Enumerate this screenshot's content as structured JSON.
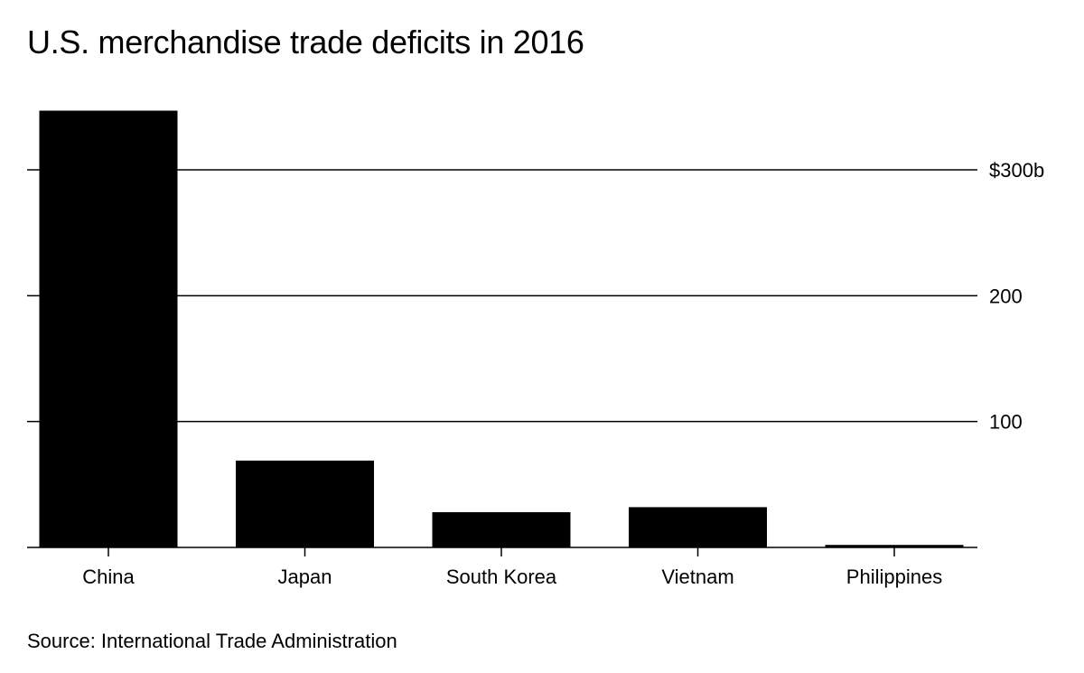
{
  "chart_data": {
    "type": "bar",
    "title": "U.S. merchandise trade deficits in 2016",
    "categories": [
      "China",
      "Japan",
      "South Korea",
      "Vietnam",
      "Philippines"
    ],
    "values": [
      347,
      69,
      28,
      32,
      2
    ],
    "ylim": [
      0,
      350
    ],
    "yticks": [
      100,
      200,
      300
    ],
    "ytick_labels": [
      "100",
      "200",
      "$300b"
    ],
    "xlabel": "",
    "ylabel": "",
    "grid": true,
    "bar_color": "#000000",
    "source": "Source: International Trade Administration"
  }
}
